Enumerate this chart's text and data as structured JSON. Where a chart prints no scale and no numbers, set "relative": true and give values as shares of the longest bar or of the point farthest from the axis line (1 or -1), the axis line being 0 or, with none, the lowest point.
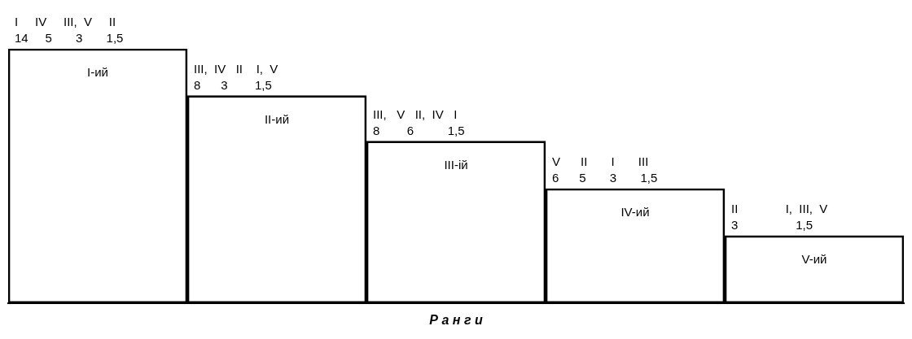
{
  "chart_data": {
    "type": "bar",
    "relative": true,
    "xlabel": "Р а н г и",
    "categories": [
      "I-ий",
      "II-ий",
      "III-ій",
      "IV-ий",
      "V-ий"
    ],
    "series": [
      {
        "color": "#000000",
        "values": [
          1,
          0.816,
          0.637,
          0.45,
          0.265
        ]
      }
    ],
    "annotations": [
      {
        "text": "I     IV     III,  V     II",
        "x": "I-ий",
        "y": 1
      },
      {
        "text": "14     5       3       1,5",
        "x": "I-ий",
        "y": 1
      },
      {
        "text": "III,  IV   II    I,  V",
        "x": "II-ий",
        "y": 0.816
      },
      {
        "text": "8      3        1,5",
        "x": "II-ий",
        "y": 0.816
      },
      {
        "text": "III,   V   II,  IV   I",
        "x": "III-ій",
        "y": 0.637
      },
      {
        "text": "8        6          1,5",
        "x": "III-ій",
        "y": 0.637
      },
      {
        "text": "V      II       I       III",
        "x": "IV-ий",
        "y": 0.45
      },
      {
        "text": "6      5       3       1,5",
        "x": "IV-ий",
        "y": 0.45
      },
      {
        "text": "II              I,  III,  V",
        "x": "V-ий",
        "y": 0.265
      },
      {
        "text": "3                 1,5",
        "x": "V-ий",
        "y": 0.265
      }
    ],
    "grid": false,
    "legend": false
  }
}
